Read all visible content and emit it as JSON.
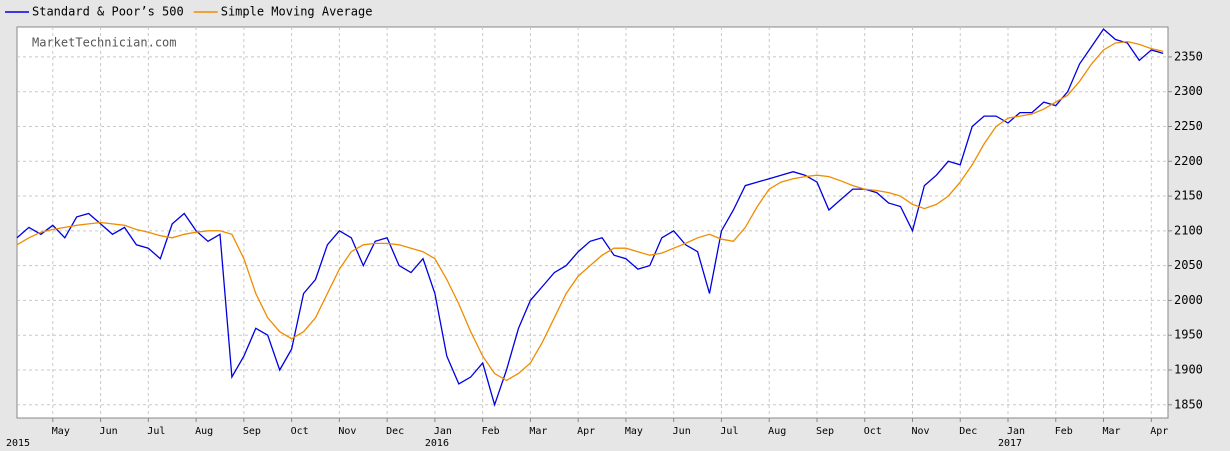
{
  "chart_data": {
    "type": "line",
    "watermark": "MarketTechnician.com",
    "x": [
      -0.75,
      -0.5,
      -0.25,
      0,
      0.25,
      0.5,
      0.75,
      1,
      1.25,
      1.5,
      1.75,
      2,
      2.25,
      2.5,
      2.75,
      3,
      3.25,
      3.5,
      3.75,
      4,
      4.25,
      4.5,
      4.75,
      5,
      5.25,
      5.5,
      5.75,
      6,
      6.25,
      6.5,
      6.75,
      7,
      7.25,
      7.5,
      7.75,
      8,
      8.25,
      8.5,
      8.75,
      9,
      9.25,
      9.5,
      9.75,
      10,
      10.25,
      10.5,
      10.75,
      11,
      11.25,
      11.5,
      11.75,
      12,
      12.25,
      12.5,
      12.75,
      13,
      13.25,
      13.5,
      13.75,
      14,
      14.25,
      14.5,
      14.75,
      15,
      15.25,
      15.5,
      15.75,
      16,
      16.25,
      16.5,
      16.75,
      17,
      17.25,
      17.5,
      17.75,
      18,
      18.25,
      18.5,
      18.75,
      19,
      19.25,
      19.5,
      19.75,
      20,
      20.25,
      20.5,
      20.75,
      21,
      21.25,
      21.5,
      21.75,
      22,
      22.25,
      22.5,
      22.75,
      23,
      23.25
    ],
    "series": [
      {
        "name": "Standard & Poor’s 500",
        "color": "#0000e0",
        "values": [
          2090,
          2105,
          2095,
          2108,
          2090,
          2120,
          2125,
          2110,
          2095,
          2105,
          2080,
          2075,
          2060,
          2110,
          2125,
          2100,
          2085,
          2095,
          1890,
          1920,
          1960,
          1950,
          1900,
          1930,
          2010,
          2030,
          2080,
          2100,
          2090,
          2050,
          2085,
          2090,
          2050,
          2040,
          2060,
          2010,
          1920,
          1880,
          1890,
          1910,
          1850,
          1900,
          1960,
          2000,
          2020,
          2040,
          2050,
          2070,
          2085,
          2090,
          2065,
          2060,
          2045,
          2050,
          2090,
          2100,
          2080,
          2070,
          2010,
          2100,
          2130,
          2165,
          2170,
          2175,
          2180,
          2185,
          2180,
          2170,
          2130,
          2145,
          2160,
          2160,
          2155,
          2140,
          2135,
          2100,
          2165,
          2180,
          2200,
          2195,
          2250,
          2265,
          2265,
          2255,
          2270,
          2270,
          2285,
          2280,
          2300,
          2340,
          2365,
          2390,
          2375,
          2370,
          2345,
          2360,
          2355
        ]
      },
      {
        "name": "Simple Moving Average",
        "color": "#f08c00",
        "values": [
          2080,
          2090,
          2098,
          2102,
          2105,
          2108,
          2110,
          2112,
          2110,
          2108,
          2102,
          2098,
          2093,
          2090,
          2095,
          2098,
          2100,
          2100,
          2095,
          2060,
          2010,
          1975,
          1955,
          1945,
          1955,
          1975,
          2010,
          2045,
          2070,
          2080,
          2082,
          2082,
          2080,
          2075,
          2070,
          2060,
          2030,
          1995,
          1955,
          1920,
          1895,
          1885,
          1895,
          1910,
          1940,
          1975,
          2010,
          2035,
          2050,
          2065,
          2075,
          2075,
          2070,
          2065,
          2068,
          2075,
          2082,
          2090,
          2095,
          2088,
          2085,
          2105,
          2135,
          2160,
          2170,
          2175,
          2178,
          2180,
          2178,
          2172,
          2165,
          2160,
          2158,
          2155,
          2150,
          2138,
          2132,
          2138,
          2150,
          2170,
          2195,
          2225,
          2250,
          2262,
          2265,
          2268,
          2275,
          2285,
          2295,
          2315,
          2340,
          2360,
          2370,
          2372,
          2368,
          2362,
          2358
        ]
      }
    ],
    "xlim": [
      -0.75,
      23.35
    ],
    "xticks": [
      {
        "value": 0,
        "label": "May"
      },
      {
        "value": 1,
        "label": "Jun"
      },
      {
        "value": 2,
        "label": "Jul"
      },
      {
        "value": 3,
        "label": "Aug"
      },
      {
        "value": 4,
        "label": "Sep"
      },
      {
        "value": 5,
        "label": "Oct"
      },
      {
        "value": 6,
        "label": "Nov"
      },
      {
        "value": 7,
        "label": "Dec"
      },
      {
        "value": 8,
        "label": "Jan"
      },
      {
        "value": 9,
        "label": "Feb"
      },
      {
        "value": 10,
        "label": "Mar"
      },
      {
        "value": 11,
        "label": "Apr"
      },
      {
        "value": 12,
        "label": "May"
      },
      {
        "value": 13,
        "label": "Jun"
      },
      {
        "value": 14,
        "label": "Jul"
      },
      {
        "value": 15,
        "label": "Aug"
      },
      {
        "value": 16,
        "label": "Sep"
      },
      {
        "value": 17,
        "label": "Oct"
      },
      {
        "value": 18,
        "label": "Nov"
      },
      {
        "value": 19,
        "label": "Dec"
      },
      {
        "value": 20,
        "label": "Jan"
      },
      {
        "value": 21,
        "label": "Feb"
      },
      {
        "value": 22,
        "label": "Mar"
      },
      {
        "value": 23,
        "label": "Apr"
      }
    ],
    "year_labels": [
      {
        "value": -0.75,
        "label": "2015"
      },
      {
        "value": 8,
        "label": "2016"
      },
      {
        "value": 20,
        "label": "2017"
      }
    ],
    "ylim": [
      1831,
      2393
    ],
    "yticks": [
      1850,
      1900,
      1950,
      2000,
      2050,
      2100,
      2150,
      2200,
      2250,
      2300,
      2350
    ],
    "grid": true
  }
}
